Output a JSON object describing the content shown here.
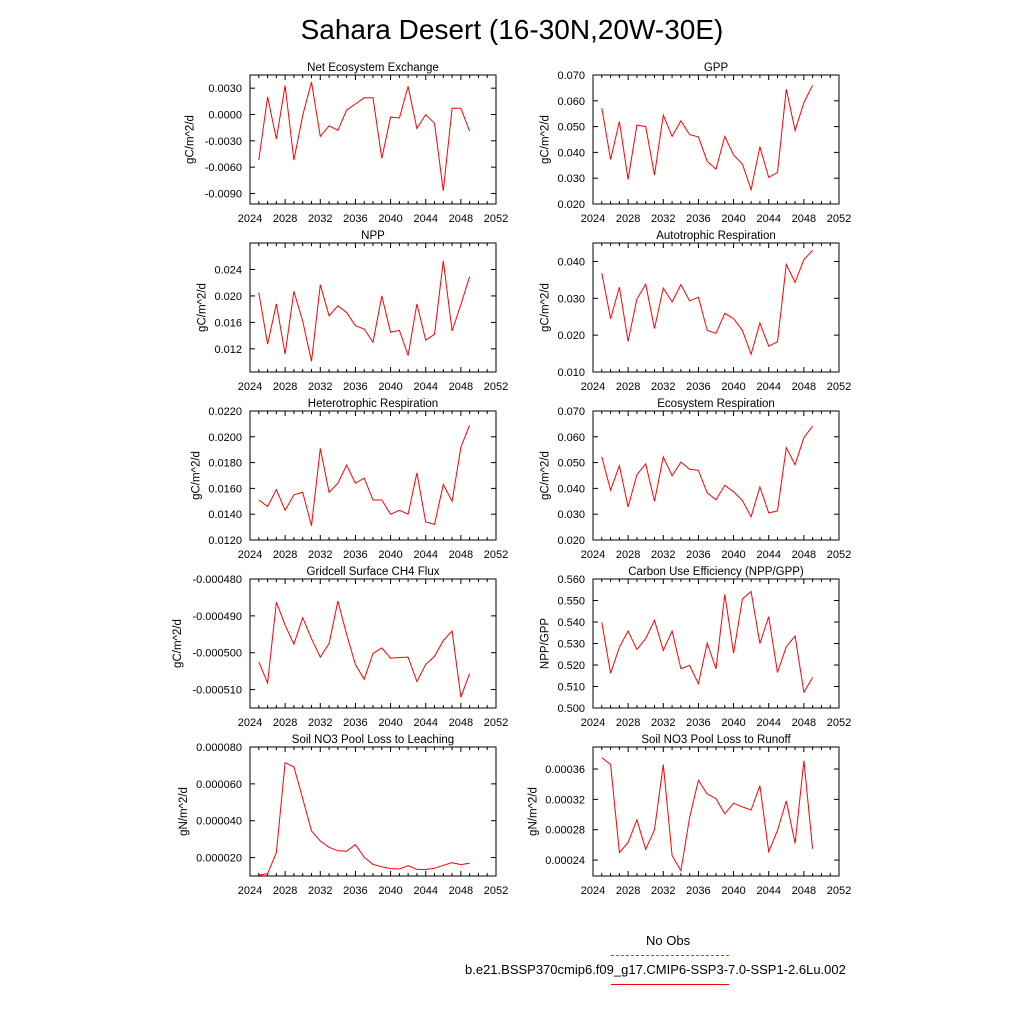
{
  "title": "Sahara Desert (16-30N,20W-30E)",
  "colors": {
    "series": "#ff0000",
    "no_obs": "#5555ee"
  },
  "legend": {
    "no_obs_label": "No Obs",
    "model_label": "b.e21.BSSP370cmip6.f09_g17.CMIP6-SSP3-7.0-SSP1-2.6Lu.002"
  },
  "chart_data": [
    {
      "type": "line",
      "title": "Net Ecosystem Exchange",
      "ylabel": "gC/m^2/d",
      "xlim": [
        2024,
        2052
      ],
      "xticks": [
        2024,
        2028,
        2032,
        2036,
        2040,
        2044,
        2048,
        2052
      ],
      "ylim": [
        -0.0102,
        0.0045
      ],
      "yticks": [
        "0.0030",
        "0.0000",
        "-0.0030",
        "-0.0060",
        "-0.0090"
      ],
      "x": [
        2025,
        2026,
        2027,
        2028,
        2029,
        2030,
        2031,
        2032,
        2033,
        2034,
        2035,
        2036,
        2037,
        2038,
        2039,
        2040,
        2041,
        2042,
        2043,
        2044,
        2045,
        2046,
        2047,
        2048,
        2049
      ],
      "values": [
        -0.0052,
        0.002,
        -0.0028,
        0.0033,
        -0.0052,
        -0.0001,
        0.0037,
        -0.0025,
        -0.0013,
        -0.0018,
        0.0005,
        0.0012,
        0.0019,
        0.0019,
        -0.005,
        -0.0003,
        -0.0004,
        0.0032,
        -0.0016,
        -0.0,
        -0.001,
        -0.0087,
        0.0007,
        0.0007,
        -0.0019
      ]
    },
    {
      "type": "line",
      "title": "GPP",
      "ylabel": "gC/m^2/d",
      "xlim": [
        2024,
        2052
      ],
      "xticks": [
        2024,
        2028,
        2032,
        2036,
        2040,
        2044,
        2048,
        2052
      ],
      "ylim": [
        0.02,
        0.07
      ],
      "yticks": [
        "0.070",
        "0.060",
        "0.050",
        "0.040",
        "0.030",
        "0.020"
      ],
      "x": [
        2025,
        2026,
        2027,
        2028,
        2029,
        2030,
        2031,
        2032,
        2033,
        2034,
        2035,
        2036,
        2037,
        2038,
        2039,
        2040,
        2041,
        2042,
        2043,
        2044,
        2045,
        2046,
        2047,
        2048,
        2049
      ],
      "values": [
        0.0572,
        0.0372,
        0.052,
        0.0295,
        0.0506,
        0.05,
        0.0312,
        0.0545,
        0.0462,
        0.0522,
        0.0469,
        0.046,
        0.0366,
        0.0335,
        0.0462,
        0.039,
        0.0355,
        0.0255,
        0.0422,
        0.0303,
        0.0322,
        0.0645,
        0.0485,
        0.0593,
        0.066
      ]
    },
    {
      "type": "line",
      "title": "NPP",
      "ylabel": "gC/m^2/d",
      "xlim": [
        2024,
        2052
      ],
      "xticks": [
        2024,
        2028,
        2032,
        2036,
        2040,
        2044,
        2048,
        2052
      ],
      "ylim": [
        0.0085,
        0.028
      ],
      "yticks": [
        "0.024",
        "0.020",
        "0.016",
        "0.012"
      ],
      "x": [
        2025,
        2026,
        2027,
        2028,
        2029,
        2030,
        2031,
        2032,
        2033,
        2034,
        2035,
        2036,
        2037,
        2038,
        2039,
        2040,
        2041,
        2042,
        2043,
        2044,
        2045,
        2046,
        2047,
        2048,
        2049
      ],
      "values": [
        0.0205,
        0.0127,
        0.0188,
        0.0112,
        0.0207,
        0.0162,
        0.0101,
        0.0217,
        0.017,
        0.0185,
        0.0175,
        0.0155,
        0.015,
        0.013,
        0.02,
        0.0145,
        0.0148,
        0.011,
        0.0188,
        0.0133,
        0.0142,
        0.0253,
        0.0147,
        0.0187,
        0.0229
      ]
    },
    {
      "type": "line",
      "title": "Autotrophic Respiration",
      "ylabel": "gC/m^2/d",
      "xlim": [
        2024,
        2052
      ],
      "xticks": [
        2024,
        2028,
        2032,
        2036,
        2040,
        2044,
        2048,
        2052
      ],
      "ylim": [
        0.01,
        0.045
      ],
      "yticks": [
        "0.040",
        "0.030",
        "0.020",
        "0.010"
      ],
      "x": [
        2025,
        2026,
        2027,
        2028,
        2029,
        2030,
        2031,
        2032,
        2033,
        2034,
        2035,
        2036,
        2037,
        2038,
        2039,
        2040,
        2041,
        2042,
        2043,
        2044,
        2045,
        2046,
        2047,
        2048,
        2049
      ],
      "values": [
        0.0368,
        0.0245,
        0.033,
        0.0183,
        0.0298,
        0.0338,
        0.0218,
        0.0328,
        0.029,
        0.0337,
        0.0293,
        0.0303,
        0.0213,
        0.0205,
        0.0259,
        0.0245,
        0.0213,
        0.0148,
        0.0233,
        0.017,
        0.0182,
        0.0392,
        0.0343,
        0.0405,
        0.043
      ]
    },
    {
      "type": "line",
      "title": "Heterotrophic Respiration",
      "ylabel": "gC/m^2/d",
      "xlim": [
        2024,
        2052
      ],
      "xticks": [
        2024,
        2028,
        2032,
        2036,
        2040,
        2044,
        2048,
        2052
      ],
      "ylim": [
        0.012,
        0.022
      ],
      "yticks": [
        "0.0220",
        "0.0200",
        "0.0180",
        "0.0160",
        "0.0140",
        "0.0120"
      ],
      "x": [
        2025,
        2026,
        2027,
        2028,
        2029,
        2030,
        2031,
        2032,
        2033,
        2034,
        2035,
        2036,
        2037,
        2038,
        2039,
        2040,
        2041,
        2042,
        2043,
        2044,
        2045,
        2046,
        2047,
        2048,
        2049
      ],
      "values": [
        0.0151,
        0.0146,
        0.0159,
        0.0143,
        0.0155,
        0.0157,
        0.0131,
        0.0191,
        0.0157,
        0.0164,
        0.0178,
        0.0164,
        0.0168,
        0.0151,
        0.0151,
        0.014,
        0.0143,
        0.014,
        0.0172,
        0.0134,
        0.0132,
        0.0163,
        0.015,
        0.0192,
        0.0209
      ]
    },
    {
      "type": "line",
      "title": "Ecosystem Respiration",
      "ylabel": "gC/m^2/d",
      "xlim": [
        2024,
        2052
      ],
      "xticks": [
        2024,
        2028,
        2032,
        2036,
        2040,
        2044,
        2048,
        2052
      ],
      "ylim": [
        0.02,
        0.07
      ],
      "yticks": [
        "0.070",
        "0.060",
        "0.050",
        "0.040",
        "0.030",
        "0.020"
      ],
      "x": [
        2025,
        2026,
        2027,
        2028,
        2029,
        2030,
        2031,
        2032,
        2033,
        2034,
        2035,
        2036,
        2037,
        2038,
        2039,
        2040,
        2041,
        2042,
        2043,
        2044,
        2045,
        2046,
        2047,
        2048,
        2049
      ],
      "values": [
        0.0522,
        0.0393,
        0.0488,
        0.0328,
        0.0453,
        0.0495,
        0.035,
        0.0522,
        0.0449,
        0.0502,
        0.0474,
        0.047,
        0.0383,
        0.0356,
        0.0412,
        0.0387,
        0.0353,
        0.029,
        0.0406,
        0.0305,
        0.0313,
        0.0558,
        0.0492,
        0.0597,
        0.0641
      ]
    },
    {
      "type": "line",
      "title": "Gridcell Surface CH4 Flux",
      "ylabel": "gC/m^2/d",
      "xlim": [
        2024,
        2052
      ],
      "xticks": [
        2024,
        2028,
        2032,
        2036,
        2040,
        2044,
        2048,
        2052
      ],
      "ylim": [
        -0.000515,
        -0.00048
      ],
      "yticks": [
        "-0.000480",
        "-0.000490",
        "-0.000500",
        "-0.000510"
      ],
      "x": [
        2025,
        2026,
        2027,
        2028,
        2029,
        2030,
        2031,
        2032,
        2033,
        2034,
        2035,
        2036,
        2037,
        2038,
        2039,
        2040,
        2041,
        2042,
        2043,
        2044,
        2045,
        2046,
        2047,
        2048,
        2049
      ],
      "values": [
        -0.0005025,
        -0.0005082,
        -0.0004863,
        -0.0004925,
        -0.0004977,
        -0.0004905,
        -0.0004962,
        -0.0005012,
        -0.0004975,
        -0.000486,
        -0.000495,
        -0.0005032,
        -0.0005072,
        -0.0005002,
        -0.0004987,
        -0.0005015,
        -0.0005013,
        -0.0005012,
        -0.0005078,
        -0.0005032,
        -0.000501,
        -0.0004967,
        -0.0004941,
        -0.0005121,
        -0.0005056
      ]
    },
    {
      "type": "line",
      "title": "Carbon Use Efficiency (NPP/GPP)",
      "ylabel": "NPP/GPP",
      "xlim": [
        2024,
        2052
      ],
      "xticks": [
        2024,
        2028,
        2032,
        2036,
        2040,
        2044,
        2048,
        2052
      ],
      "ylim": [
        0.5,
        0.56
      ],
      "yticks": [
        "0.560",
        "0.550",
        "0.540",
        "0.530",
        "0.520",
        "0.510",
        "0.500"
      ],
      "x": [
        2025,
        2026,
        2027,
        2028,
        2029,
        2030,
        2031,
        2032,
        2033,
        2034,
        2035,
        2036,
        2037,
        2038,
        2039,
        2040,
        2041,
        2042,
        2043,
        2044,
        2045,
        2046,
        2047,
        2048,
        2049
      ],
      "values": [
        0.5398,
        0.5162,
        0.5283,
        0.5358,
        0.5272,
        0.5323,
        0.5408,
        0.5268,
        0.5358,
        0.5183,
        0.5198,
        0.5113,
        0.5302,
        0.5182,
        0.5528,
        0.5255,
        0.5507,
        0.5542,
        0.53,
        0.5425,
        0.5165,
        0.5285,
        0.5335,
        0.5073,
        0.5142
      ]
    },
    {
      "type": "line",
      "title": "Soil NO3 Pool Loss to Leaching",
      "ylabel": "gN/m^2/d",
      "xlim": [
        2024,
        2052
      ],
      "xticks": [
        2024,
        2028,
        2032,
        2036,
        2040,
        2044,
        2048,
        2052
      ],
      "ylim": [
        1e-05,
        8e-05
      ],
      "yticks": [
        "0.000080",
        "0.000060",
        "0.000040",
        "0.000020"
      ],
      "x": [
        2025,
        2026,
        2027,
        2028,
        2029,
        2030,
        2031,
        2032,
        2033,
        2034,
        2035,
        2036,
        2037,
        2038,
        2039,
        2040,
        2041,
        2042,
        2043,
        2044,
        2045,
        2046,
        2047,
        2048,
        2049
      ],
      "values": [
        1.05e-05,
        1.12e-05,
        2.28e-05,
        7.15e-05,
        6.92e-05,
        5.2e-05,
        3.45e-05,
        2.9e-05,
        2.56e-05,
        2.37e-05,
        2.34e-05,
        2.7e-05,
        2.02e-05,
        1.63e-05,
        1.5e-05,
        1.4e-05,
        1.38e-05,
        1.56e-05,
        1.36e-05,
        1.35e-05,
        1.42e-05,
        1.58e-05,
        1.72e-05,
        1.62e-05,
        1.7e-05
      ]
    },
    {
      "type": "line",
      "title": "Soil NO3 Pool Loss to Runoff",
      "ylabel": "gN/m^2/d",
      "xlim": [
        2024,
        2052
      ],
      "xticks": [
        2024,
        2028,
        2032,
        2036,
        2040,
        2044,
        2048,
        2052
      ],
      "ylim": [
        0.000219,
        0.000389
      ],
      "yticks": [
        "0.00036",
        "0.00032",
        "0.00028",
        "0.00024"
      ],
      "x": [
        2025,
        2026,
        2027,
        2028,
        2029,
        2030,
        2031,
        2032,
        2033,
        2034,
        2035,
        2036,
        2037,
        2038,
        2039,
        2040,
        2041,
        2042,
        2043,
        2044,
        2045,
        2046,
        2047,
        2048,
        2049
      ],
      "values": [
        0.000375,
        0.000366,
        0.00025,
        0.000263,
        0.000293,
        0.000254,
        0.00028,
        0.000366,
        0.000246,
        0.000226,
        0.000296,
        0.000345,
        0.000327,
        0.000321,
        0.000301,
        0.000315,
        0.00031,
        0.000306,
        0.000338,
        0.000251,
        0.000279,
        0.000318,
        0.000262,
        0.000371,
        0.000255
      ]
    }
  ]
}
